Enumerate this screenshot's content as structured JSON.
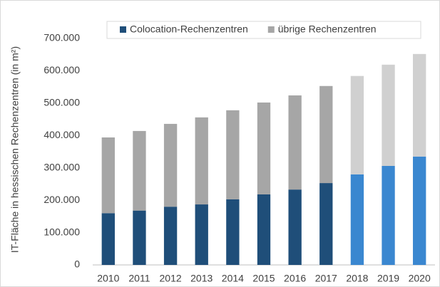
{
  "chart_data": {
    "type": "stacked-bar",
    "y_label": "IT-Fläche in hessischen Rechenzentren (in m²)",
    "categories": [
      "2010",
      "2011",
      "2012",
      "2013",
      "2014",
      "2015",
      "2016",
      "2017",
      "2018",
      "2019",
      "2020"
    ],
    "series": [
      {
        "name": "Colocation-Rechenzentren",
        "color": "#1f4e79",
        "colors": [
          "#1f4e79",
          "#1f4e79",
          "#1f4e79",
          "#1f4e79",
          "#1f4e79",
          "#1f4e79",
          "#1f4e79",
          "#1f4e79",
          "#3a87d0",
          "#3a87d0",
          "#3a87d0"
        ],
        "values": [
          160000,
          168000,
          180000,
          187000,
          203000,
          218000,
          233000,
          253000,
          280000,
          306000,
          335000
        ]
      },
      {
        "name": "übrige Rechenzentren",
        "color": "#a6a6a6",
        "colors": [
          "#a6a6a6",
          "#a6a6a6",
          "#a6a6a6",
          "#a6a6a6",
          "#a6a6a6",
          "#a6a6a6",
          "#a6a6a6",
          "#a6a6a6",
          "#d0d0d0",
          "#d0d0d0",
          "#d0d0d0"
        ],
        "values": [
          234000,
          246000,
          256000,
          269000,
          275000,
          284000,
          291000,
          300000,
          304000,
          313000,
          317000
        ]
      }
    ],
    "ylim": [
      0,
      700000
    ],
    "yticks": [
      0,
      {
        "value": 100000,
        "label": "100.000"
      },
      {
        "value": 200000,
        "label": "200.000"
      },
      {
        "value": 300000,
        "label": "300.000"
      },
      {
        "value": 400000,
        "label": "400.000"
      },
      {
        "value": 500000,
        "label": "500.000"
      },
      {
        "value": 600000,
        "label": "600.000"
      },
      {
        "value": 700000,
        "label": "700.000"
      }
    ],
    "grid": false,
    "legend": "top"
  }
}
